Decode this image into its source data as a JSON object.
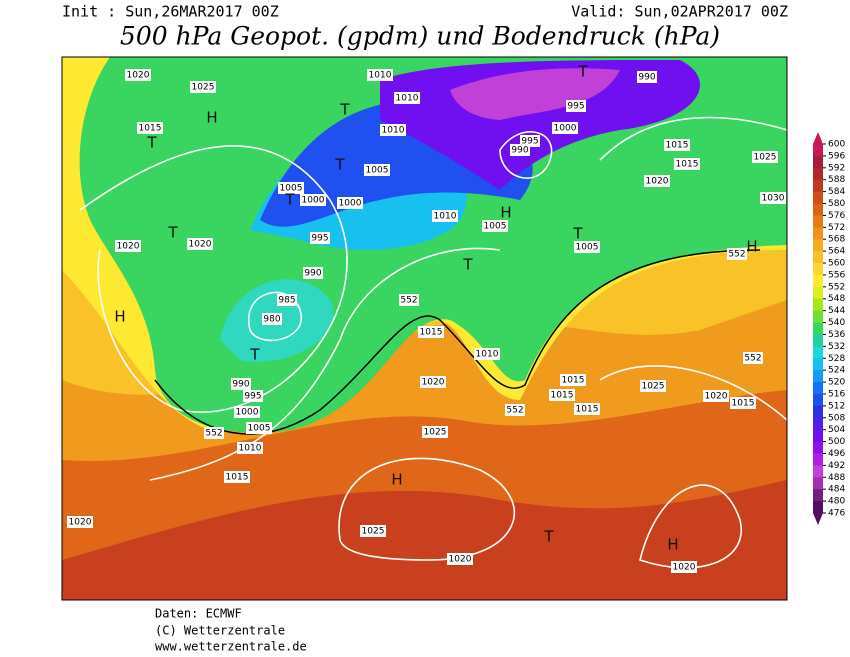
{
  "header": {
    "init": "Init : Sun,26MAR2017 00Z",
    "valid": "Valid: Sun,02APR2017 00Z",
    "title": "500 hPa Geopot. (gpdm) und Bodendruck (hPa)"
  },
  "colorbar": {
    "ticks": [
      600,
      596,
      592,
      588,
      584,
      580,
      576,
      572,
      568,
      564,
      560,
      556,
      552,
      548,
      544,
      540,
      536,
      532,
      528,
      524,
      520,
      516,
      512,
      508,
      504,
      500,
      496,
      492,
      488,
      484,
      480,
      476
    ],
    "colors": [
      "#c8185a",
      "#a51e3a",
      "#b0282a",
      "#c2391e",
      "#d04c1a",
      "#dd6218",
      "#e87a18",
      "#f0921c",
      "#f5ab22",
      "#f8c228",
      "#fcd82e",
      "#fdea32",
      "#d8f020",
      "#a8e818",
      "#70e030",
      "#38d860",
      "#20d0a0",
      "#18d8d8",
      "#18c0f0",
      "#1898f8",
      "#1870f8",
      "#2050f0",
      "#3030e0",
      "#5020e8",
      "#7010f0",
      "#9010e8",
      "#b020e0",
      "#c040d8",
      "#a030b0",
      "#702080",
      "#501060"
    ]
  },
  "map": {
    "labels": [
      "1020",
      "1025",
      "1015",
      "H",
      "T",
      "1010",
      "1010",
      "T",
      "1010",
      "T",
      "1005",
      "1005",
      "1000",
      "1000",
      "T",
      "995",
      "T",
      "1020",
      "1020",
      "1010",
      "990",
      "985",
      "980",
      "T",
      "990",
      "995",
      "1000",
      "1005",
      "1010",
      "1015",
      "H",
      "552",
      "552",
      "1015",
      "1010",
      "1020",
      "552",
      "1025",
      "H",
      "1025",
      "1020",
      "T",
      "1020",
      "H",
      "1020",
      "995",
      "1000",
      "995",
      "990",
      "T",
      "990",
      "1015",
      "1015",
      "1020",
      "1025",
      "1030",
      "H",
      "552",
      "H",
      "1005",
      "T",
      "1005",
      "T",
      "1015",
      "1015",
      "1015",
      "1025",
      "1020",
      "1015",
      "552"
    ]
  },
  "footer": {
    "lines": [
      "Daten: ECMWF",
      "(C) Wetterzentrale",
      "www.wetterzentrale.de"
    ]
  }
}
